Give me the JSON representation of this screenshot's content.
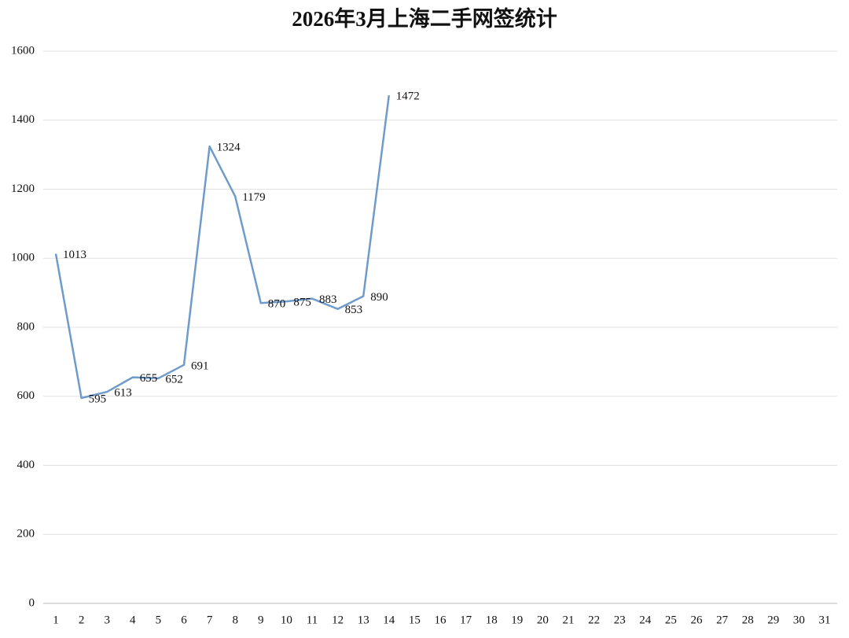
{
  "chart_data": {
    "type": "line",
    "title": "2026年3月上海二手网签统计",
    "categories": [
      "1",
      "2",
      "3",
      "4",
      "5",
      "6",
      "7",
      "8",
      "9",
      "10",
      "11",
      "12",
      "13",
      "14",
      "15",
      "16",
      "17",
      "18",
      "19",
      "20",
      "21",
      "22",
      "23",
      "24",
      "25",
      "26",
      "27",
      "28",
      "29",
      "30",
      "31"
    ],
    "series": [
      {
        "name": null,
        "color": "#6f9bcb",
        "values": [
          1013,
          595,
          613,
          655,
          652,
          691,
          1324,
          1179,
          870,
          875,
          883,
          853,
          890,
          1472,
          null,
          null,
          null,
          null,
          null,
          null,
          null,
          null,
          null,
          null,
          null,
          null,
          null,
          null,
          null,
          null,
          null
        ]
      }
    ],
    "ylim": [
      0,
      1600
    ],
    "yticks": [
      0,
      200,
      400,
      600,
      800,
      1000,
      1200,
      1400,
      1600
    ],
    "grid": true
  }
}
